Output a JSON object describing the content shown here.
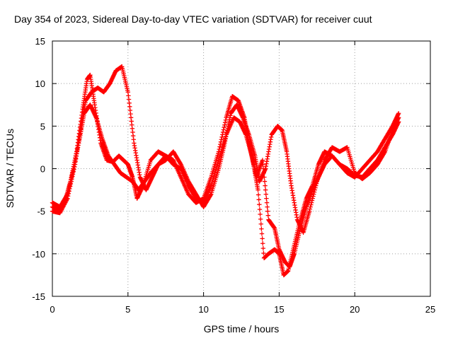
{
  "chart_data": {
    "type": "scatter",
    "title": "Day 354 of 2023, Sidereal Day-to-day VTEC variation (SDTVAR) for receiver cuut",
    "xlabel": "GPS time / hours",
    "ylabel": "SDTVAR / TECUs",
    "xlim": [
      0,
      25
    ],
    "ylim": [
      -15,
      15
    ],
    "x_ticks": [
      0,
      5,
      10,
      15,
      20,
      25
    ],
    "y_ticks": [
      -15,
      -10,
      -5,
      0,
      5,
      10,
      15
    ],
    "grid": true,
    "marker": "plus",
    "color": "#ff0000",
    "series": [
      {
        "x": [
          0.0,
          0.4,
          0.8,
          1.2,
          1.6,
          2.0,
          2.3,
          2.5,
          2.8,
          3.2,
          3.6,
          4.0,
          4.4,
          4.7,
          5.0,
          5.3,
          5.6,
          6.0,
          6.5,
          7.0,
          7.5,
          8.0,
          8.5,
          9.0,
          9.5,
          10.0,
          10.5,
          11.0,
          11.5,
          11.9,
          12.3,
          12.7,
          13.0,
          13.3,
          13.6,
          14.0,
          14.3,
          14.7,
          15.0,
          15.3,
          15.6,
          16.0,
          16.4,
          16.8,
          17.2,
          17.6,
          18.0,
          18.5,
          19.0,
          19.5,
          20.0,
          20.5,
          21.0,
          21.5,
          22.0,
          22.5,
          22.9
        ],
        "y": [
          -4.5,
          -4.8,
          -4.0,
          -1.5,
          2.0,
          7.0,
          10.5,
          11.0,
          7.5,
          3.0,
          1.0,
          0.8,
          1.5,
          1.0,
          0.5,
          -1.0,
          -3.5,
          -2.0,
          1.0,
          2.0,
          1.5,
          1.0,
          -1.0,
          -3.0,
          -4.0,
          -3.5,
          -1.0,
          2.0,
          6.0,
          8.5,
          8.0,
          6.0,
          3.0,
          0.5,
          -2.5,
          -10.5,
          -10.0,
          -9.5,
          -10.0,
          -12.5,
          -12.0,
          -9.0,
          -6.0,
          -3.5,
          -2.0,
          0.5,
          2.0,
          1.5,
          0.5,
          -0.5,
          -1.0,
          0.0,
          1.0,
          2.0,
          3.5,
          5.0,
          6.5
        ]
      },
      {
        "x": [
          0.0,
          0.5,
          1.0,
          1.5,
          1.9,
          2.2,
          2.6,
          3.0,
          3.4,
          3.8,
          4.2,
          4.6,
          5.0,
          5.4,
          5.8,
          6.2,
          6.6,
          7.0,
          7.5,
          8.0,
          8.5,
          9.0,
          9.5,
          10.0,
          10.5,
          11.0,
          11.4,
          11.8,
          12.2,
          12.6,
          13.0,
          13.4,
          13.7,
          14.1,
          14.5,
          14.9,
          15.2,
          15.5,
          15.8,
          16.2,
          16.6,
          17.0,
          17.5,
          18.0,
          18.5,
          19.0,
          19.5,
          20.0,
          20.5,
          21.0,
          21.5,
          22.0,
          22.5,
          22.9
        ],
        "y": [
          -5.0,
          -5.2,
          -3.5,
          0.5,
          5.0,
          8.0,
          9.0,
          9.5,
          9.0,
          10.0,
          11.5,
          12.0,
          9.0,
          3.0,
          -1.0,
          -2.5,
          -1.0,
          0.5,
          1.0,
          2.0,
          0.5,
          -1.5,
          -3.0,
          -4.5,
          -3.0,
          0.0,
          3.0,
          6.5,
          7.5,
          6.0,
          4.0,
          1.5,
          -1.5,
          0.0,
          4.0,
          5.0,
          4.5,
          2.0,
          -2.0,
          -6.0,
          -7.5,
          -5.0,
          -1.5,
          1.0,
          2.5,
          2.0,
          2.5,
          -0.5,
          -1.2,
          -0.5,
          0.5,
          2.0,
          4.5,
          6.0
        ]
      },
      {
        "x": [
          0.0,
          0.5,
          1.0,
          1.4,
          1.8,
          2.1,
          2.5,
          2.9,
          3.3,
          3.7,
          4.1,
          4.5,
          4.9,
          5.3,
          5.7,
          6.1,
          6.5,
          7.0,
          7.5,
          8.0,
          8.5,
          9.0,
          9.5,
          10.0,
          10.5,
          11.0,
          11.5,
          12.0,
          12.4,
          12.8,
          13.2,
          13.5,
          13.9,
          14.3,
          14.7,
          15.0,
          15.4,
          15.7,
          16.0,
          16.4,
          16.8,
          17.2,
          17.6,
          18.0,
          18.5,
          19.0,
          19.5,
          20.0,
          20.5,
          21.0,
          21.5,
          22.0,
          22.5,
          22.9
        ],
        "y": [
          -4.0,
          -4.5,
          -3.0,
          0.0,
          3.5,
          6.5,
          7.5,
          6.0,
          3.5,
          1.5,
          0.5,
          -0.5,
          -1.0,
          -1.5,
          -2.5,
          -1.5,
          -0.5,
          0.5,
          1.5,
          0.5,
          0.0,
          -2.0,
          -3.5,
          -4.0,
          -2.0,
          1.0,
          4.0,
          6.0,
          5.5,
          4.0,
          1.5,
          -1.0,
          1.0,
          -6.0,
          -7.0,
          -9.5,
          -11.0,
          -11.5,
          -10.0,
          -7.0,
          -4.5,
          -2.5,
          -1.0,
          0.5,
          1.5,
          0.5,
          0.0,
          -0.8,
          -1.0,
          0.0,
          1.0,
          2.5,
          4.0,
          5.5
        ]
      }
    ]
  }
}
